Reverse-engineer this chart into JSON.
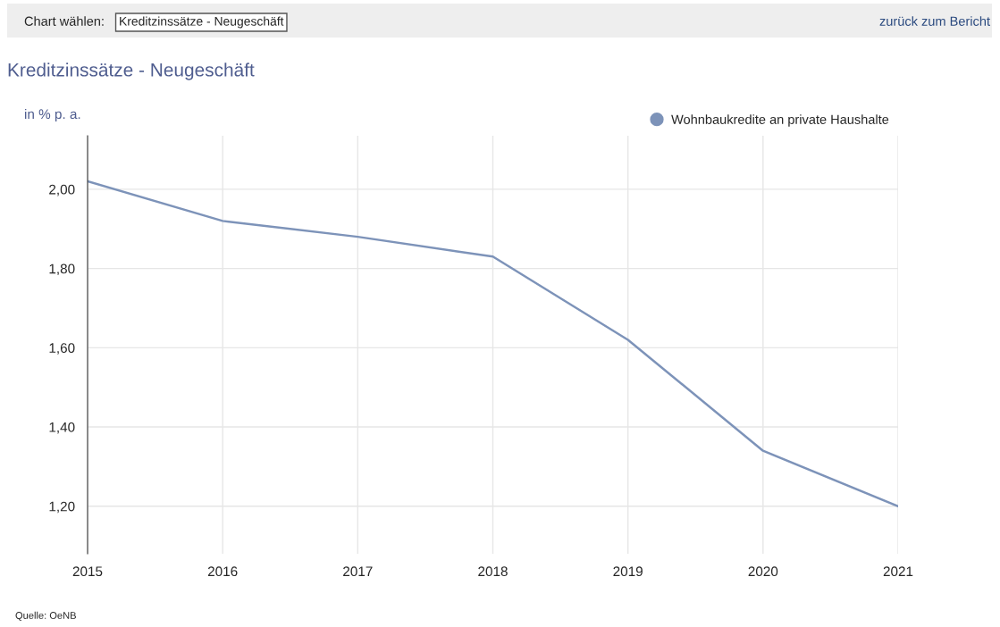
{
  "chart_data": {
    "type": "line",
    "title": "Kreditzinssätze - Neugeschäft",
    "ylabel": "in % p. a.",
    "annotations": [
      "Chart wählen:",
      "Kreditzinssätze - Neugeschäft",
      "zurück zum Bericht",
      "Quelle: OeNB"
    ],
    "x": [
      2015,
      2016,
      2017,
      2018,
      2019,
      2020,
      2021
    ],
    "series": [
      {
        "name": "Wohnbaukredite an private Haushalte",
        "color": "#7d93b9",
        "values": [
          2.02,
          1.92,
          1.88,
          1.83,
          1.62,
          1.34,
          1.2
        ]
      }
    ],
    "xlim": [
      2015,
      2021
    ],
    "xticks": [
      2015,
      2016,
      2017,
      2018,
      2019,
      2020,
      2021
    ],
    "ylim": [
      1.08,
      2.135
    ],
    "yticks": [
      {
        "value": 1.2,
        "label": "1,20"
      },
      {
        "value": 1.4,
        "label": "1,40"
      },
      {
        "value": 1.6,
        "label": "1,60"
      },
      {
        "value": 1.8,
        "label": "1,80"
      },
      {
        "value": 2.0,
        "label": "2,00"
      }
    ],
    "grid": true,
    "legend": "top right"
  }
}
